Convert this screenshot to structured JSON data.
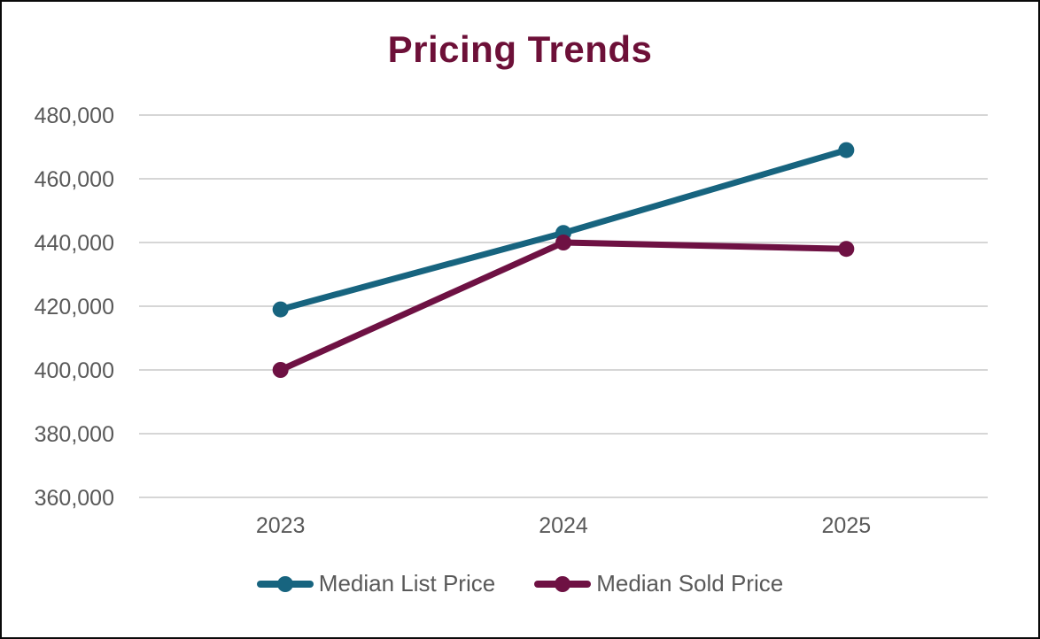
{
  "chart_data": {
    "type": "line",
    "title": "Pricing Trends",
    "xlabel": "",
    "ylabel": "",
    "categories": [
      "2023",
      "2024",
      "2025"
    ],
    "series": [
      {
        "name": "Median List Price",
        "color": "#17647f",
        "values": [
          419000,
          443000,
          469000
        ]
      },
      {
        "name": "Median Sold Price",
        "color": "#6e1143",
        "values": [
          400000,
          440000,
          438000
        ]
      }
    ],
    "ylim": [
      360000,
      480000
    ],
    "ytick_step": 20000,
    "ytick_labels": [
      "360,000",
      "380,000",
      "400,000",
      "420,000",
      "440,000",
      "460,000",
      "480,000"
    ],
    "grid": true,
    "gridline_color": "#d6d6d6",
    "axis_label_color": "#595959",
    "title_color": "#6d1038",
    "legend_position": "bottom"
  }
}
